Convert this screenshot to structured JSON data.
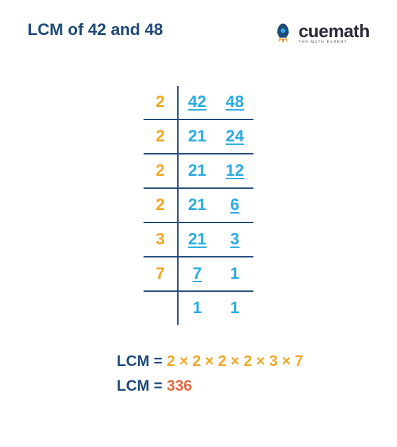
{
  "title": "LCM of 42 and 48",
  "logo": {
    "text": "cuemath",
    "tagline": "THE MATH EXPERT"
  },
  "colors": {
    "title": "#1e4a7a",
    "prime": "#f5a623",
    "number": "#29abe2",
    "border": "#1e4a7a",
    "expr": "#f5a623",
    "answer": "#e8663c",
    "logo_text": "#2a2a3a"
  },
  "division": {
    "rows": [
      {
        "prime": "2",
        "a": "42",
        "b": "48",
        "a_ul": true,
        "b_ul": true
      },
      {
        "prime": "2",
        "a": "21",
        "b": "24",
        "a_ul": false,
        "b_ul": true
      },
      {
        "prime": "2",
        "a": "21",
        "b": "12",
        "a_ul": false,
        "b_ul": true
      },
      {
        "prime": "2",
        "a": "21",
        "b": "6",
        "a_ul": false,
        "b_ul": true
      },
      {
        "prime": "3",
        "a": "21",
        "b": "3",
        "a_ul": true,
        "b_ul": true
      },
      {
        "prime": "7",
        "a": "7",
        "b": "1",
        "a_ul": true,
        "b_ul": false
      },
      {
        "prime": "",
        "a": "1",
        "b": "1",
        "a_ul": false,
        "b_ul": false
      }
    ]
  },
  "result": {
    "label": "LCM",
    "eq": "=",
    "expression": "2 × 2 × 2 × 2 × 3 × 7",
    "answer": "336"
  },
  "typography": {
    "title_fontsize": 24,
    "table_fontsize": 24,
    "result_fontsize": 22,
    "font_weight": 600
  }
}
